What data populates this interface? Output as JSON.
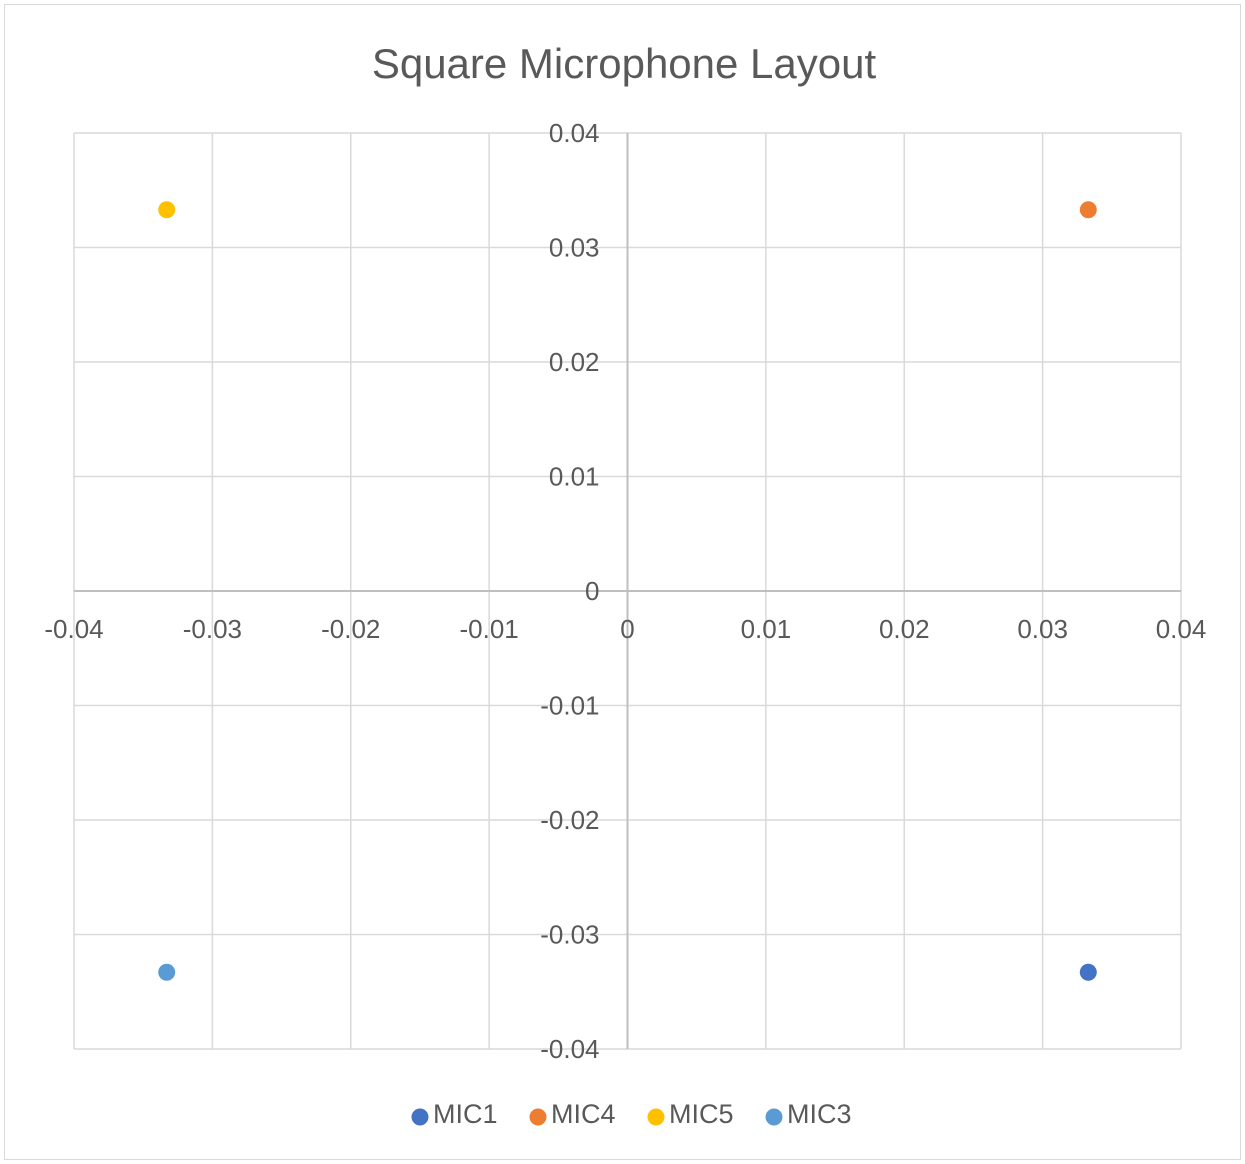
{
  "chart_data": {
    "type": "scatter",
    "title": "Square Microphone Layout",
    "xlabel": "",
    "ylabel": "",
    "xlim": [
      -0.04,
      0.04
    ],
    "ylim": [
      -0.04,
      0.04
    ],
    "x_ticks": [
      -0.04,
      -0.03,
      -0.02,
      -0.01,
      0,
      0.01,
      0.02,
      0.03,
      0.04
    ],
    "y_ticks": [
      0.04,
      0.03,
      0.02,
      0.01,
      0,
      -0.01,
      -0.02,
      -0.03,
      -0.04
    ],
    "x_tick_labels": [
      "-0.04",
      "-0.03",
      "-0.02",
      "-0.01",
      "0",
      "0.01",
      "0.02",
      "0.03",
      "0.04"
    ],
    "y_tick_labels": [
      "0.04",
      "0.03",
      "0.02",
      "0.01",
      "0",
      "-0.01",
      "-0.02",
      "-0.03",
      "-0.04"
    ],
    "grid": true,
    "legend_position": "bottom",
    "series": [
      {
        "name": "MIC1",
        "color": "#4472c4",
        "points": [
          {
            "x": 0.0333,
            "y": -0.0333
          }
        ]
      },
      {
        "name": "MIC4",
        "color": "#ed7d31",
        "points": [
          {
            "x": 0.0333,
            "y": 0.0333
          }
        ]
      },
      {
        "name": "MIC5",
        "color": "#ffc000",
        "points": [
          {
            "x": -0.0333,
            "y": 0.0333
          }
        ]
      },
      {
        "name": "MIC3",
        "color": "#5b9bd5",
        "points": [
          {
            "x": -0.0333,
            "y": -0.0333
          }
        ]
      }
    ]
  }
}
